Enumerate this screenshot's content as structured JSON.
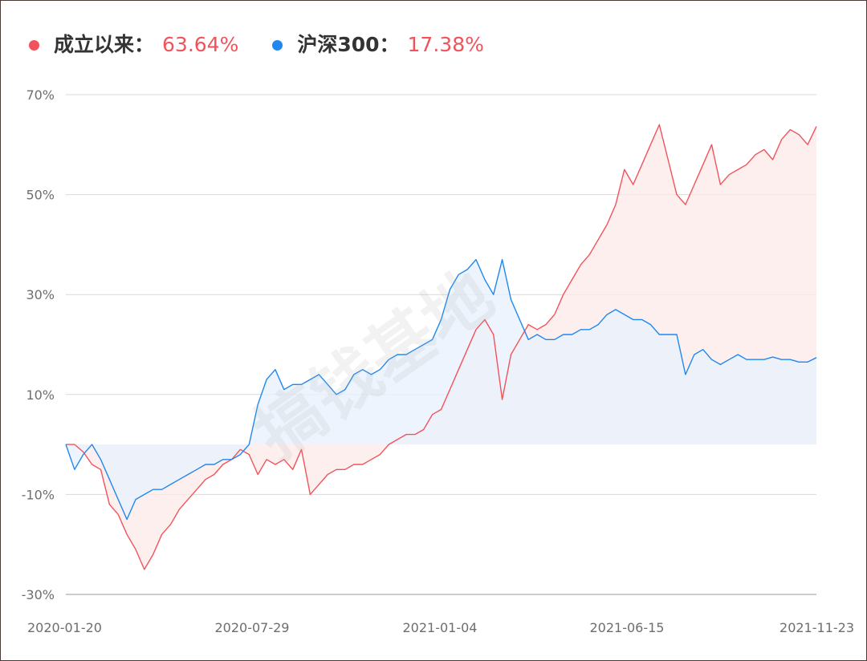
{
  "legend": [
    {
      "label": "成立以来：",
      "value": "63.64%",
      "color": "#f2535b"
    },
    {
      "label": "沪深300：",
      "value": "17.38%",
      "color": "#1e88f0"
    }
  ],
  "watermark": "搞钱基地",
  "chart_data": {
    "type": "line",
    "title": "",
    "xlabel": "",
    "ylabel": "",
    "ylim": [
      -30,
      70
    ],
    "y_ticks": [
      -30,
      -10,
      10,
      30,
      50,
      70
    ],
    "y_tick_labels": [
      "-30%",
      "-10%",
      "10%",
      "30%",
      "50%",
      "70%"
    ],
    "x_tick_labels": [
      "2020-01-20",
      "2020-07-29",
      "2021-01-04",
      "2021-06-15",
      "2021-11-23"
    ],
    "grid": true,
    "area_fill": true,
    "legend_position": "top-left",
    "series": [
      {
        "name": "成立以来",
        "color": "#f2535b",
        "fill": "#fde9e9",
        "values": [
          0,
          0,
          -1.5,
          -4,
          -5,
          -12,
          -14,
          -18,
          -21,
          -25,
          -22,
          -18,
          -16,
          -13,
          -11,
          -9,
          -7,
          -6,
          -4,
          -3,
          -1,
          -2,
          -6,
          -3,
          -4,
          -3,
          -5,
          -1,
          -10,
          -8,
          -6,
          -5,
          -5,
          -4,
          -4,
          -3,
          -2,
          0,
          1,
          2,
          2,
          3,
          6,
          7,
          11,
          15,
          19,
          23,
          25,
          22,
          9,
          18,
          21,
          24,
          23,
          24,
          26,
          30,
          33,
          36,
          38,
          41,
          44,
          48,
          55,
          52,
          56,
          60,
          64,
          57,
          50,
          48,
          52,
          56,
          60,
          52,
          54,
          55,
          56,
          58,
          59,
          57,
          61,
          63,
          62,
          60,
          63.64
        ]
      },
      {
        "name": "沪深300",
        "color": "#1e88f0",
        "fill": "#e8f1fc",
        "values": [
          0,
          -5,
          -2,
          0,
          -3,
          -7,
          -11,
          -15,
          -11,
          -10,
          -9,
          -9,
          -8,
          -7,
          -6,
          -5,
          -4,
          -4,
          -3,
          -3,
          -2,
          0,
          8,
          13,
          15,
          11,
          12,
          12,
          13,
          14,
          12,
          10,
          11,
          14,
          15,
          14,
          15,
          17,
          18,
          18,
          19,
          20,
          21,
          25,
          31,
          34,
          35,
          37,
          33,
          30,
          37,
          29,
          25,
          21,
          22,
          21,
          21,
          22,
          22,
          23,
          23,
          24,
          26,
          27,
          26,
          25,
          25,
          24,
          22,
          22,
          22,
          14,
          18,
          19,
          17,
          16,
          17,
          18,
          17,
          17,
          17,
          17.5,
          17,
          17,
          16.5,
          16.5,
          17.38
        ]
      }
    ]
  }
}
